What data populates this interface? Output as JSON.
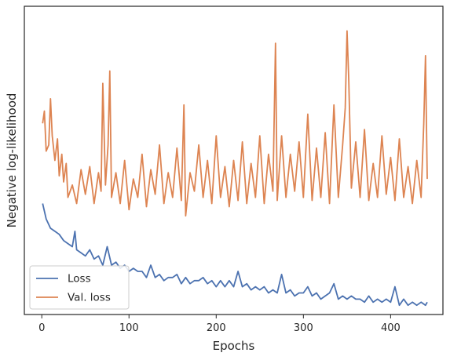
{
  "chart_data": {
    "type": "line",
    "xlabel": "Epochs",
    "ylabel": "Negative log-likelihood",
    "xlim": [
      -20,
      460
    ],
    "ylim": [
      0,
      100
    ],
    "xticks": [
      0,
      100,
      200,
      300,
      400
    ],
    "yticks_shown": false,
    "grid": false,
    "legend_position": "lower-left",
    "series": [
      {
        "name": "Loss",
        "color": "#4c72b0",
        "x": [
          1,
          5,
          10,
          15,
          20,
          25,
          30,
          35,
          38,
          40,
          45,
          50,
          55,
          60,
          65,
          70,
          75,
          80,
          85,
          90,
          95,
          100,
          105,
          110,
          115,
          120,
          125,
          130,
          135,
          140,
          145,
          150,
          155,
          160,
          165,
          170,
          175,
          180,
          185,
          190,
          195,
          200,
          205,
          210,
          215,
          220,
          225,
          230,
          235,
          240,
          245,
          250,
          255,
          260,
          265,
          270,
          275,
          280,
          285,
          290,
          295,
          300,
          305,
          310,
          315,
          320,
          325,
          330,
          335,
          340,
          345,
          350,
          355,
          360,
          365,
          370,
          375,
          380,
          385,
          390,
          395,
          400,
          405,
          410,
          415,
          420,
          425,
          430,
          435,
          440,
          442
        ],
        "y": [
          36,
          31,
          28,
          27,
          26,
          24,
          23,
          22,
          27,
          21,
          20,
          19,
          21,
          18,
          19,
          16,
          22,
          16,
          17,
          15,
          16,
          14,
          15,
          14,
          14,
          12,
          16,
          12,
          13,
          11,
          12,
          12,
          13,
          10,
          12,
          10,
          11,
          11,
          12,
          10,
          11,
          9,
          11,
          9,
          11,
          9,
          14,
          9,
          10,
          8,
          9,
          8,
          9,
          7,
          8,
          7,
          13,
          7,
          8,
          6,
          7,
          7,
          9,
          6,
          7,
          5,
          6,
          7,
          10,
          5,
          6,
          5,
          6,
          5,
          5,
          4,
          6,
          4,
          5,
          4,
          5,
          4,
          9,
          3,
          5,
          3,
          4,
          3,
          4,
          3,
          4
        ]
      },
      {
        "name": "Val. loss",
        "color": "#dd8452",
        "x": [
          1,
          3,
          5,
          8,
          10,
          12,
          15,
          18,
          20,
          23,
          25,
          28,
          30,
          35,
          40,
          45,
          50,
          55,
          60,
          65,
          68,
          70,
          73,
          76,
          78,
          80,
          85,
          90,
          95,
          100,
          105,
          110,
          115,
          120,
          125,
          130,
          135,
          140,
          145,
          150,
          155,
          160,
          163,
          165,
          170,
          175,
          180,
          185,
          190,
          195,
          200,
          205,
          210,
          215,
          220,
          225,
          230,
          235,
          240,
          245,
          250,
          255,
          260,
          265,
          268,
          270,
          275,
          280,
          285,
          290,
          295,
          300,
          305,
          310,
          315,
          320,
          325,
          330,
          335,
          340,
          345,
          348,
          350,
          352,
          355,
          360,
          365,
          370,
          375,
          380,
          385,
          390,
          395,
          400,
          405,
          410,
          415,
          420,
          425,
          430,
          435,
          438,
          440,
          442
        ],
        "y": [
          62,
          66,
          53,
          55,
          70,
          58,
          50,
          57,
          45,
          52,
          43,
          49,
          38,
          42,
          36,
          47,
          39,
          48,
          36,
          46,
          40,
          75,
          42,
          55,
          79,
          38,
          46,
          36,
          50,
          34,
          44,
          38,
          52,
          35,
          47,
          39,
          55,
          36,
          46,
          38,
          54,
          37,
          68,
          32,
          46,
          40,
          55,
          38,
          50,
          36,
          58,
          38,
          48,
          35,
          50,
          37,
          56,
          36,
          49,
          38,
          58,
          36,
          52,
          40,
          88,
          37,
          58,
          38,
          52,
          40,
          56,
          38,
          65,
          37,
          54,
          38,
          59,
          36,
          68,
          38,
          55,
          67,
          92,
          76,
          41,
          56,
          38,
          60,
          37,
          49,
          38,
          58,
          39,
          51,
          37,
          57,
          38,
          48,
          36,
          50,
          38,
          62,
          84,
          44
        ]
      }
    ]
  }
}
